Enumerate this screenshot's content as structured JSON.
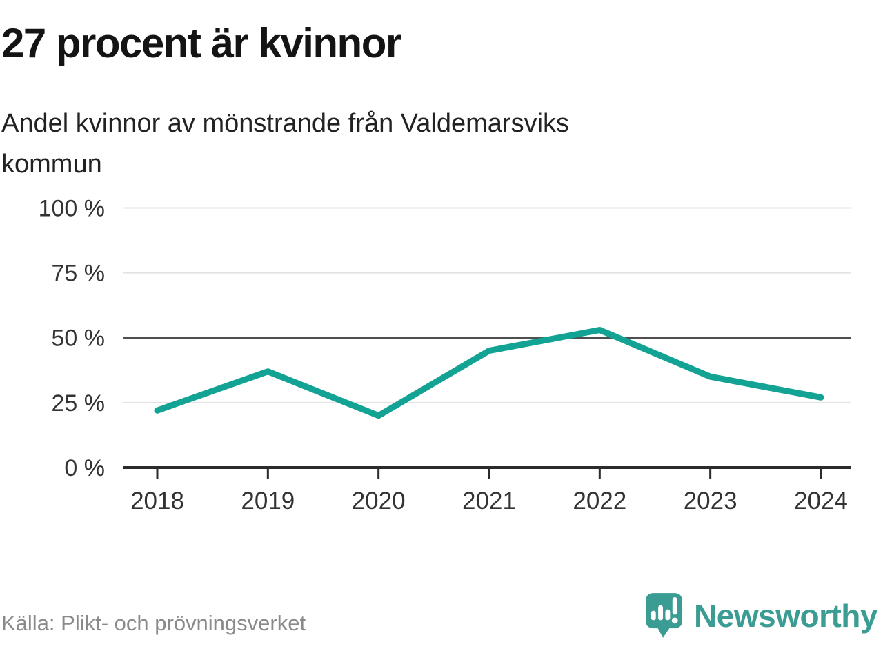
{
  "header": {
    "title": "27 procent är kvinnor",
    "subtitle": "Andel kvinnor av mönstrande från Valdemarsviks kommun"
  },
  "chart_data": {
    "type": "line",
    "title": "27 procent är kvinnor",
    "subtitle": "Andel kvinnor av mönstrande från Valdemarsviks kommun",
    "categories": [
      "2018",
      "2019",
      "2020",
      "2021",
      "2022",
      "2023",
      "2024"
    ],
    "values": [
      22,
      37,
      20,
      45,
      53,
      35,
      27
    ],
    "unit": "%",
    "ylim": [
      0,
      100
    ],
    "yticks": [
      {
        "value": 0,
        "label": "0 %"
      },
      {
        "value": 25,
        "label": "25 %"
      },
      {
        "value": 50,
        "label": "50 %"
      },
      {
        "value": 75,
        "label": "75 %"
      },
      {
        "value": 100,
        "label": "100 %"
      }
    ],
    "grid": true,
    "emphasized_gridline_value": 50,
    "legend": "none"
  },
  "footer": {
    "source": "Källa: Plikt- och prövningsverket",
    "brand": "Newsworthy"
  },
  "colors": {
    "line": "#12A394",
    "grid": "#E3E3E3",
    "grid_emphasis": "#4F4F4F",
    "axis": "#2B2B2B",
    "tick_text": "#333333",
    "source_text": "#8A8A8A",
    "logo": "#3A9C92",
    "background": "#FFFFFF"
  }
}
